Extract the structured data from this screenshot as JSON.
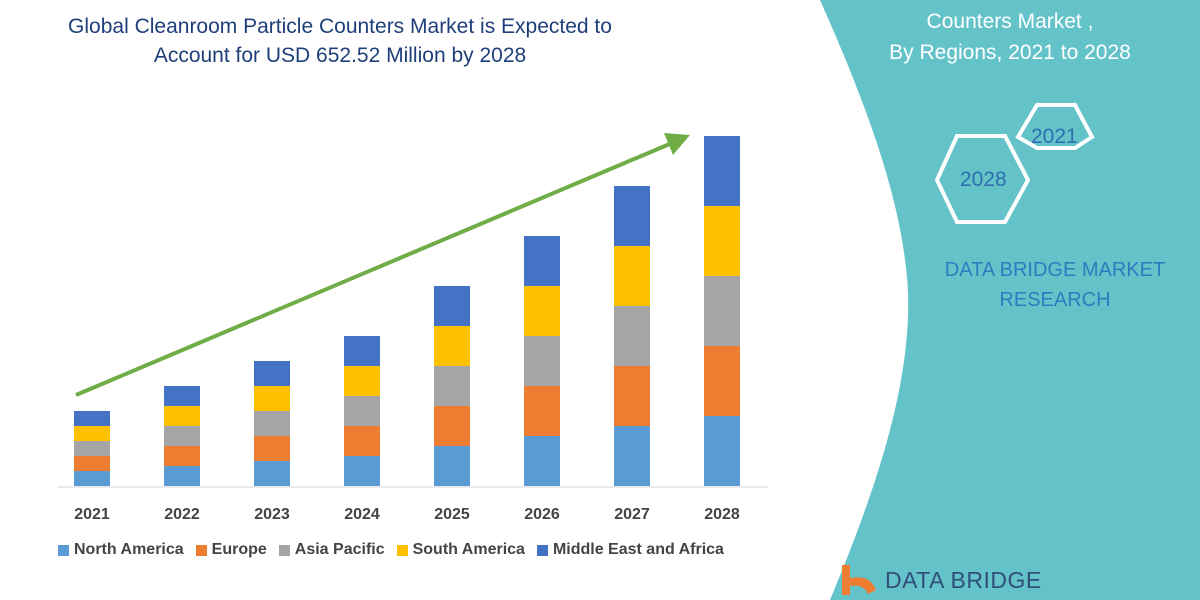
{
  "header": {
    "title_line1": "Global Cleanroom Particle Counters Market is Expected to",
    "title_line2": "Account for USD 652.52 Million by 2028"
  },
  "side_panel": {
    "heading_line1": "Counters Market ,",
    "heading_line2": "By Regions,  2021 to 2028",
    "hex_start": "2021",
    "hex_end": "2028",
    "brand_line1": "DATA BRIDGE MARKET",
    "brand_line2": "RESEARCH",
    "logo_text": "DATA BRIDGE",
    "panel_color": "#63c3c8"
  },
  "chart_data": {
    "type": "bar",
    "stacked": true,
    "title": "",
    "xlabel": "",
    "ylabel": "",
    "y_axis_shown": false,
    "grid": false,
    "legend_position": "bottom",
    "trend_arrow_color": "#70ad47",
    "categories": [
      "2021",
      "2022",
      "2023",
      "2024",
      "2025",
      "2026",
      "2027",
      "2028"
    ],
    "series": [
      {
        "name": "North America",
        "color": "#5b9bd5",
        "values": [
          15,
          20,
          25,
          30,
          40,
          50,
          60,
          70
        ]
      },
      {
        "name": "Europe",
        "color": "#ed7d31",
        "values": [
          15,
          20,
          25,
          30,
          40,
          50,
          60,
          70
        ]
      },
      {
        "name": "Asia Pacific",
        "color": "#a5a5a5",
        "values": [
          15,
          20,
          25,
          30,
          40,
          50,
          60,
          70
        ]
      },
      {
        "name": "South America",
        "color": "#ffc000",
        "values": [
          15,
          20,
          25,
          30,
          40,
          50,
          60,
          70
        ]
      },
      {
        "name": "Middle East and Africa",
        "color": "#4472c4",
        "values": [
          15,
          20,
          25,
          30,
          40,
          50,
          60,
          70
        ]
      }
    ]
  }
}
